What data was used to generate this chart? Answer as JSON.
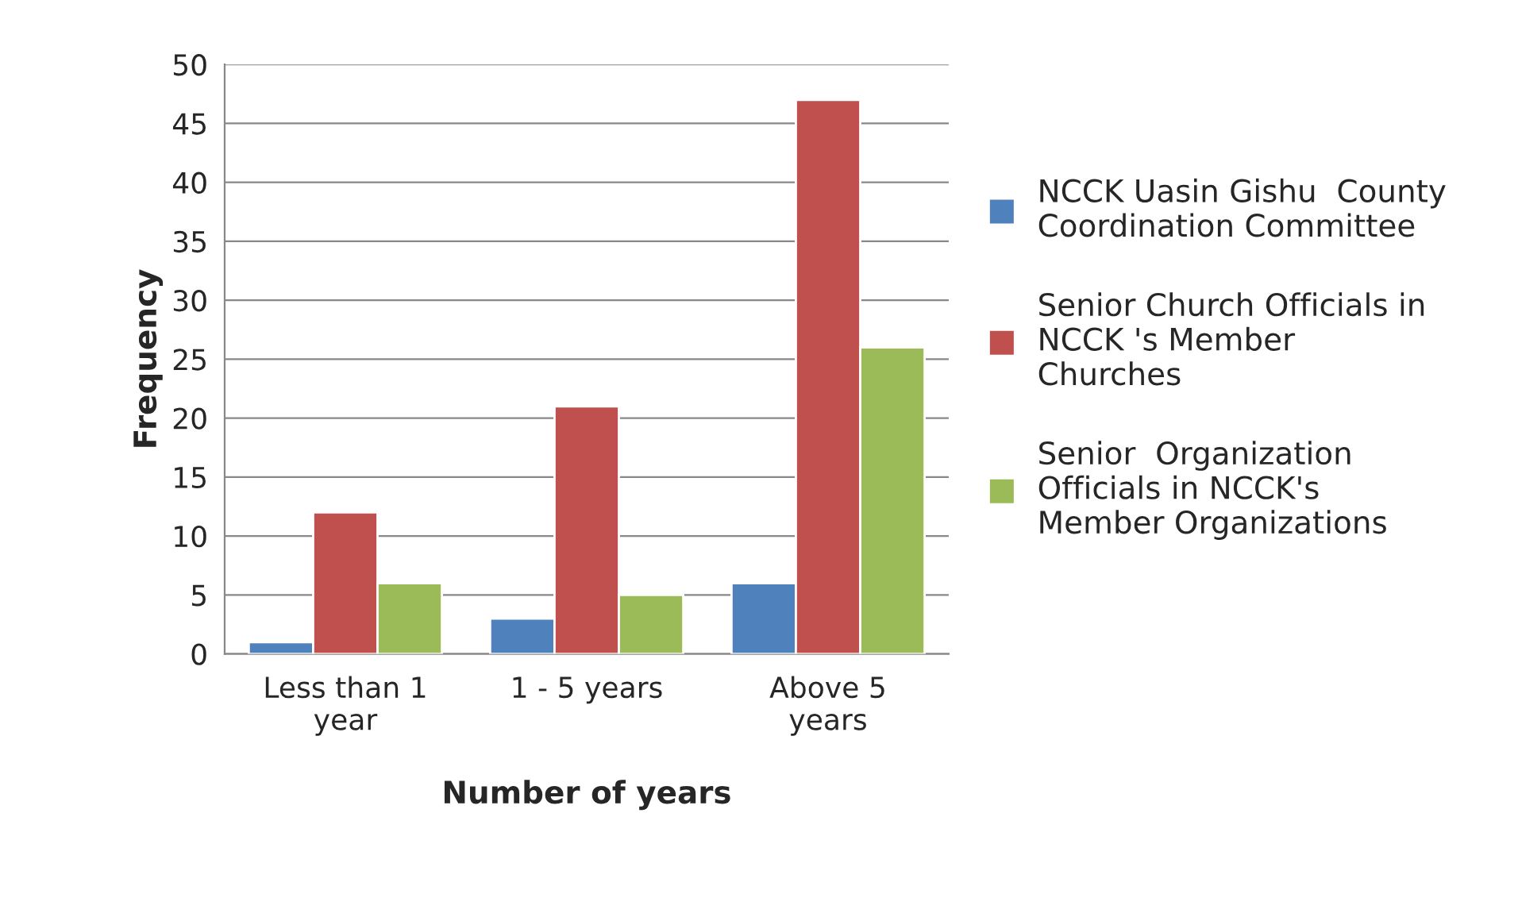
{
  "chart_data": {
    "type": "bar",
    "xlabel": "Number of years",
    "ylabel": "Frequency",
    "categories": [
      "Less than 1\nyear",
      "1 - 5 years",
      "Above 5\nyears"
    ],
    "series": [
      {
        "name": "NCCK Uasin Gishu  County\nCoordination Committee",
        "color": "#4f81bd",
        "values": [
          1,
          3,
          6
        ]
      },
      {
        "name": "Senior Church Officials in\nNCCK 's Member\nChurches",
        "color": "#c0504d",
        "values": [
          12,
          21,
          47
        ]
      },
      {
        "name": "Senior  Organization\nOfficials in NCCK's\nMember Organizations",
        "color": "#9bbb59",
        "values": [
          6,
          5,
          26
        ]
      }
    ],
    "ylim": [
      0,
      50
    ],
    "yticks": [
      0,
      5,
      10,
      15,
      20,
      25,
      30,
      35,
      40,
      45,
      50
    ],
    "grid": "y",
    "legend": "right"
  }
}
